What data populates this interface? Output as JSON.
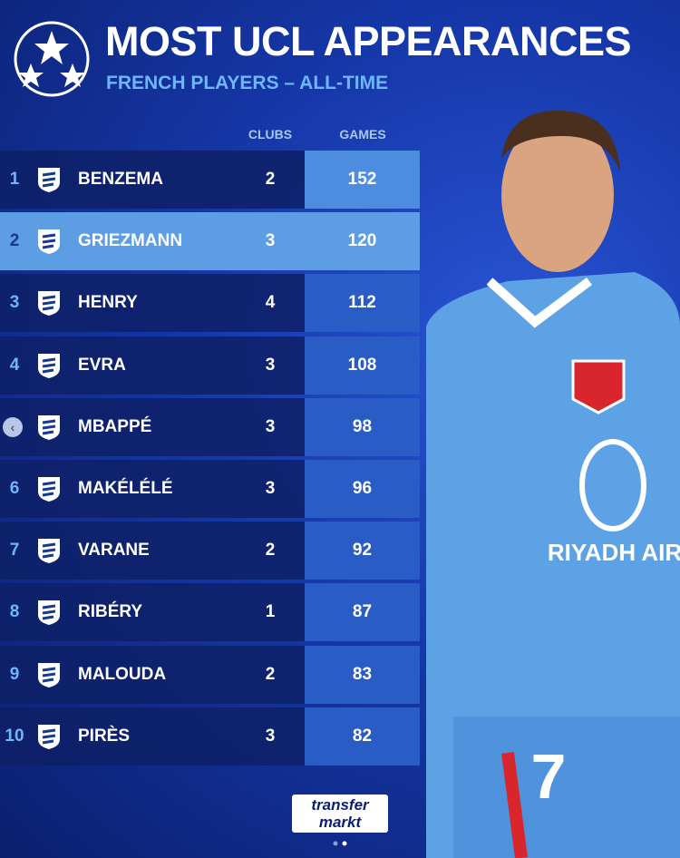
{
  "header": {
    "title": "MOST UCL APPEARANCES",
    "subtitle": "FRENCH PLAYERS – ALL-TIME"
  },
  "table": {
    "columns": [
      "CLUBS",
      "GAMES"
    ],
    "rows": [
      {
        "rank": "1",
        "name": "BENZEMA",
        "clubs": "2",
        "games": "152"
      },
      {
        "rank": "2",
        "name": "GRIEZMANN",
        "clubs": "3",
        "games": "120"
      },
      {
        "rank": "3",
        "name": "HENRY",
        "clubs": "4",
        "games": "112"
      },
      {
        "rank": "4",
        "name": "EVRA",
        "clubs": "3",
        "games": "108"
      },
      {
        "rank": null,
        "name": "MBAPPÉ",
        "clubs": "3",
        "games": "98"
      },
      {
        "rank": "6",
        "name": "MAKÉLÉLÉ",
        "clubs": "3",
        "games": "96"
      },
      {
        "rank": "7",
        "name": "VARANE",
        "clubs": "2",
        "games": "92"
      },
      {
        "rank": "8",
        "name": "RIBÉRY",
        "clubs": "1",
        "games": "87"
      },
      {
        "rank": "9",
        "name": "MALOUDA",
        "clubs": "2",
        "games": "83"
      },
      {
        "rank": "10",
        "name": "PIRÈS",
        "clubs": "3",
        "games": "82"
      }
    ]
  },
  "footer": {
    "logo": [
      "transfer",
      "markt"
    ]
  },
  "photo": {
    "shirt_text": "RIYADH AIR",
    "shirt_number": "7"
  }
}
